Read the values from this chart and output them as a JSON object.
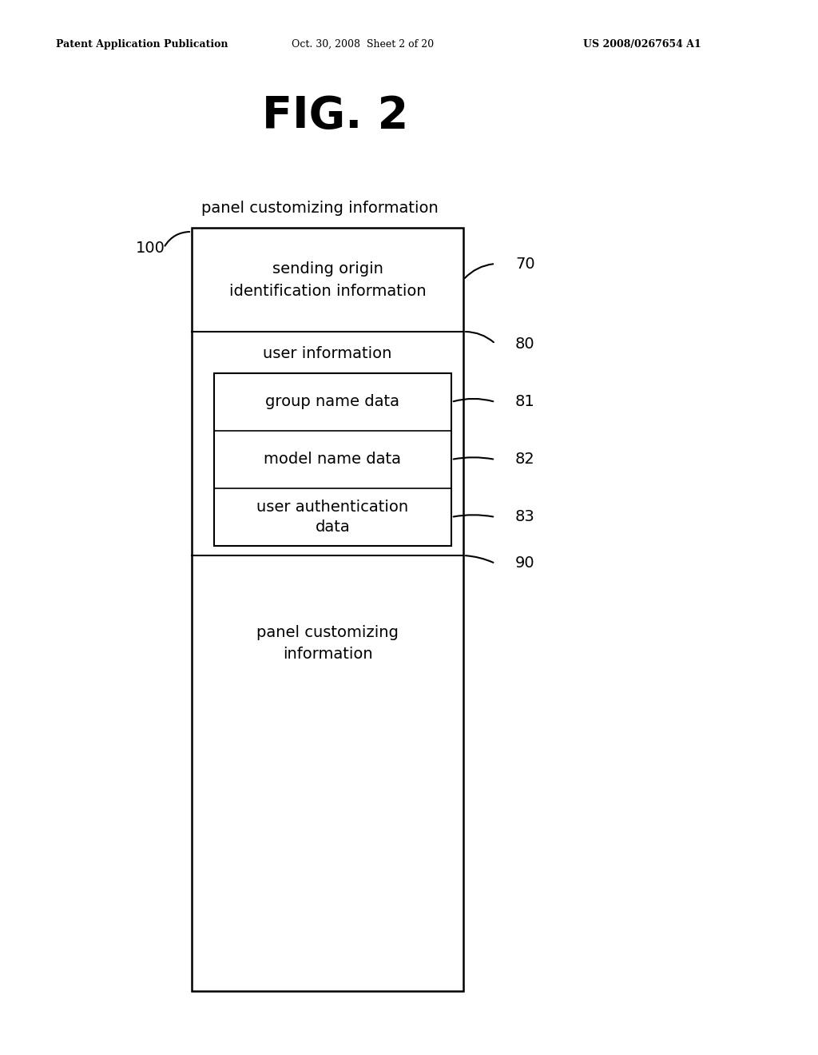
{
  "title": "FIG. 2",
  "header_left": "Patent Application Publication",
  "header_center": "Oct. 30, 2008  Sheet 2 of 20",
  "header_right": "US 2008/0267654 A1",
  "top_label": "panel customizing information",
  "label_100": "100",
  "label_70": "70",
  "label_80": "80",
  "label_81": "81",
  "label_82": "82",
  "label_83": "83",
  "label_90": "90",
  "box_70_text": "sending origin\nidentification information",
  "box_80_text": "user information",
  "box_81_text": "group name data",
  "box_82_text": "model name data",
  "box_83_text": "user authentication\ndata",
  "box_90_text": "panel customizing\ninformation",
  "bg_color": "#ffffff",
  "fg_color": "#000000"
}
